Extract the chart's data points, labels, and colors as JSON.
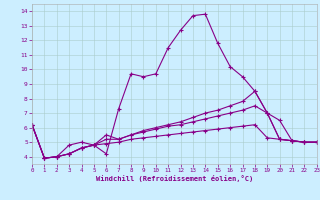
{
  "xlabel": "Windchill (Refroidissement éolien,°C)",
  "xlim": [
    0,
    23
  ],
  "ylim": [
    3.5,
    14.5
  ],
  "xticks": [
    0,
    1,
    2,
    3,
    4,
    5,
    6,
    7,
    8,
    9,
    10,
    11,
    12,
    13,
    14,
    15,
    16,
    17,
    18,
    19,
    20,
    21,
    22,
    23
  ],
  "yticks": [
    4,
    5,
    6,
    7,
    8,
    9,
    10,
    11,
    12,
    13,
    14
  ],
  "bg_color": "#cceeff",
  "line_color": "#880088",
  "lines": [
    [
      6.2,
      3.9,
      4.0,
      4.8,
      5.0,
      4.8,
      4.2,
      7.3,
      9.7,
      9.5,
      9.7,
      11.5,
      12.7,
      13.7,
      13.8,
      11.8,
      10.2,
      9.5,
      8.5,
      7.0,
      6.5,
      5.1,
      5.0,
      5.0
    ],
    [
      6.2,
      3.9,
      4.0,
      4.2,
      4.6,
      4.8,
      5.2,
      5.2,
      5.5,
      5.8,
      6.0,
      6.2,
      6.4,
      6.7,
      7.0,
      7.2,
      7.5,
      7.8,
      8.5,
      7.0,
      5.2,
      5.1,
      5.0,
      5.0
    ],
    [
      6.2,
      3.9,
      4.0,
      4.2,
      4.6,
      4.8,
      5.5,
      5.2,
      5.5,
      5.7,
      5.9,
      6.1,
      6.2,
      6.4,
      6.6,
      6.8,
      7.0,
      7.2,
      7.5,
      7.0,
      5.2,
      5.1,
      5.0,
      5.0
    ],
    [
      6.2,
      3.9,
      4.0,
      4.2,
      4.6,
      4.8,
      4.9,
      5.0,
      5.2,
      5.3,
      5.4,
      5.5,
      5.6,
      5.7,
      5.8,
      5.9,
      6.0,
      6.1,
      6.2,
      5.3,
      5.2,
      5.1,
      5.0,
      5.0
    ]
  ]
}
